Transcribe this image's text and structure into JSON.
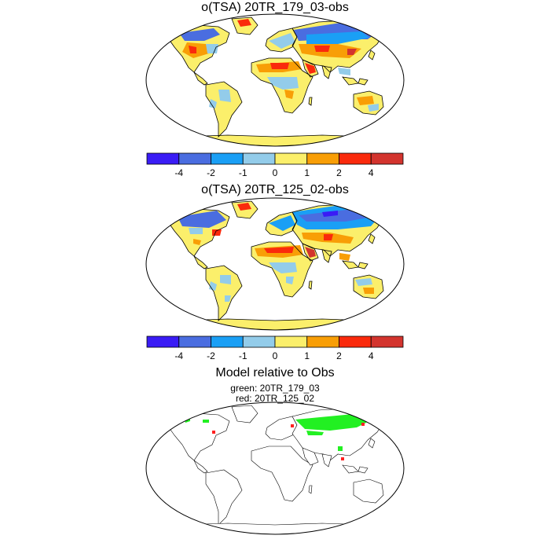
{
  "panels": [
    {
      "title": "o(TSA) 20TR_179_03-obs"
    },
    {
      "title": "o(TSA) 20TR_125_02-obs"
    },
    {
      "title": "Model relative to Obs",
      "subtitle1": "green: 20TR_179_03",
      "subtitle2": "red: 20TR_125_02"
    }
  ],
  "colorbar": {
    "colors": [
      "#3a1cf5",
      "#4a6de0",
      "#1a9ff5",
      "#93ccea",
      "#fbef6b",
      "#f89e06",
      "#fa2a0c",
      "#d3342e"
    ],
    "tick_labels": [
      "-4",
      "-2",
      "-1",
      "0",
      "1",
      "2",
      "4"
    ]
  },
  "bias_bands": {
    "very_cold": "#3a1cf5",
    "cold": "#4a6de0",
    "cool": "#1a9ff5",
    "slightly_cool": "#93ccea",
    "slightly_warm": "#fbef6b",
    "warm": "#f89e06",
    "hot": "#fa2a0c",
    "very_hot": "#d3342e"
  },
  "comparison_colors": {
    "green": "#22f022",
    "red": "#ff2020"
  }
}
